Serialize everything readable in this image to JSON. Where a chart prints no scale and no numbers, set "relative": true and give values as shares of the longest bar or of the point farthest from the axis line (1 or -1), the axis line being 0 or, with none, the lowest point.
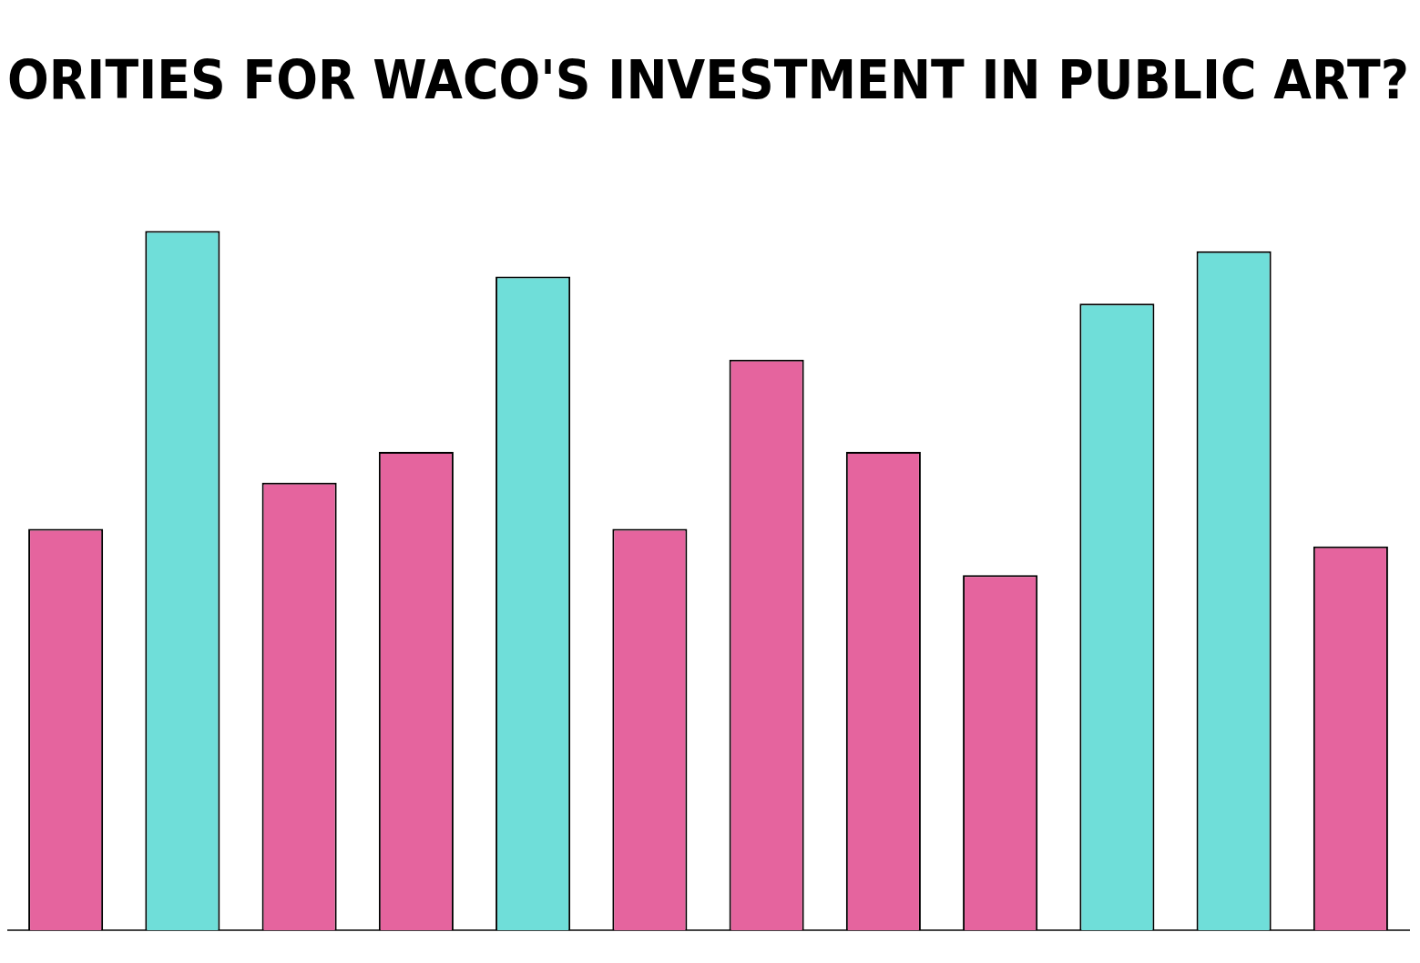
{
  "chart_data": {
    "type": "bar",
    "relative": true,
    "title": "ORITIES FOR WACO'S INVESTMENT IN PUBLIC ART?",
    "categories": [
      null,
      null,
      null,
      null,
      null,
      null,
      null,
      null,
      null,
      null,
      null,
      null
    ],
    "values": [
      0.574,
      1,
      0.64,
      0.684,
      0.935,
      0.574,
      0.816,
      0.684,
      0.508,
      0.896,
      0.971,
      0.549
    ],
    "colors": [
      "#e5649e",
      "#6fded9",
      "#e5649e",
      "#e5649e",
      "#6fded9",
      "#e5649e",
      "#e5649e",
      "#e5649e",
      "#e5649e",
      "#6fded9",
      "#6fded9",
      "#e5649e"
    ],
    "legend": false
  }
}
